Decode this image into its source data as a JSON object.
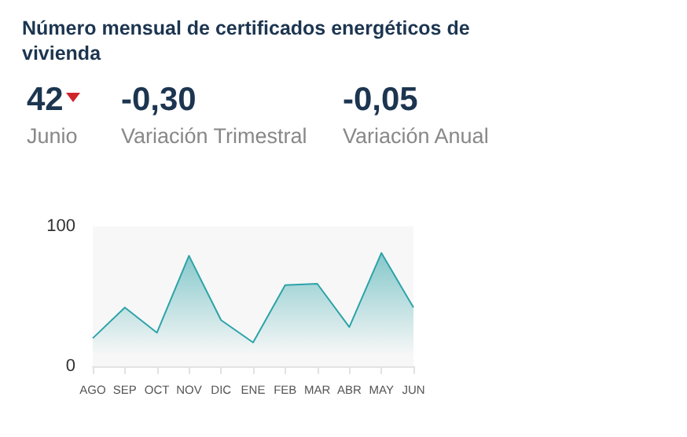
{
  "chart_data": {
    "type": "area",
    "title": "Número mensual de certificados energéticos de vivienda",
    "annotations": [
      "42",
      "Junio",
      "-0,30",
      "Variación Trimestral",
      "-0,05",
      "Variación Anual"
    ],
    "categories": [
      "AGO",
      "SEP",
      "OCT",
      "NOV",
      "DIC",
      "ENE",
      "FEB",
      "MAR",
      "ABR",
      "MAY",
      "JUN"
    ],
    "values": [
      20,
      42,
      24,
      79,
      33,
      17,
      58,
      59,
      28,
      81,
      42
    ],
    "color": "#2ba3a8",
    "ylim": [
      0,
      100
    ],
    "yticks": [
      0,
      100
    ]
  }
}
